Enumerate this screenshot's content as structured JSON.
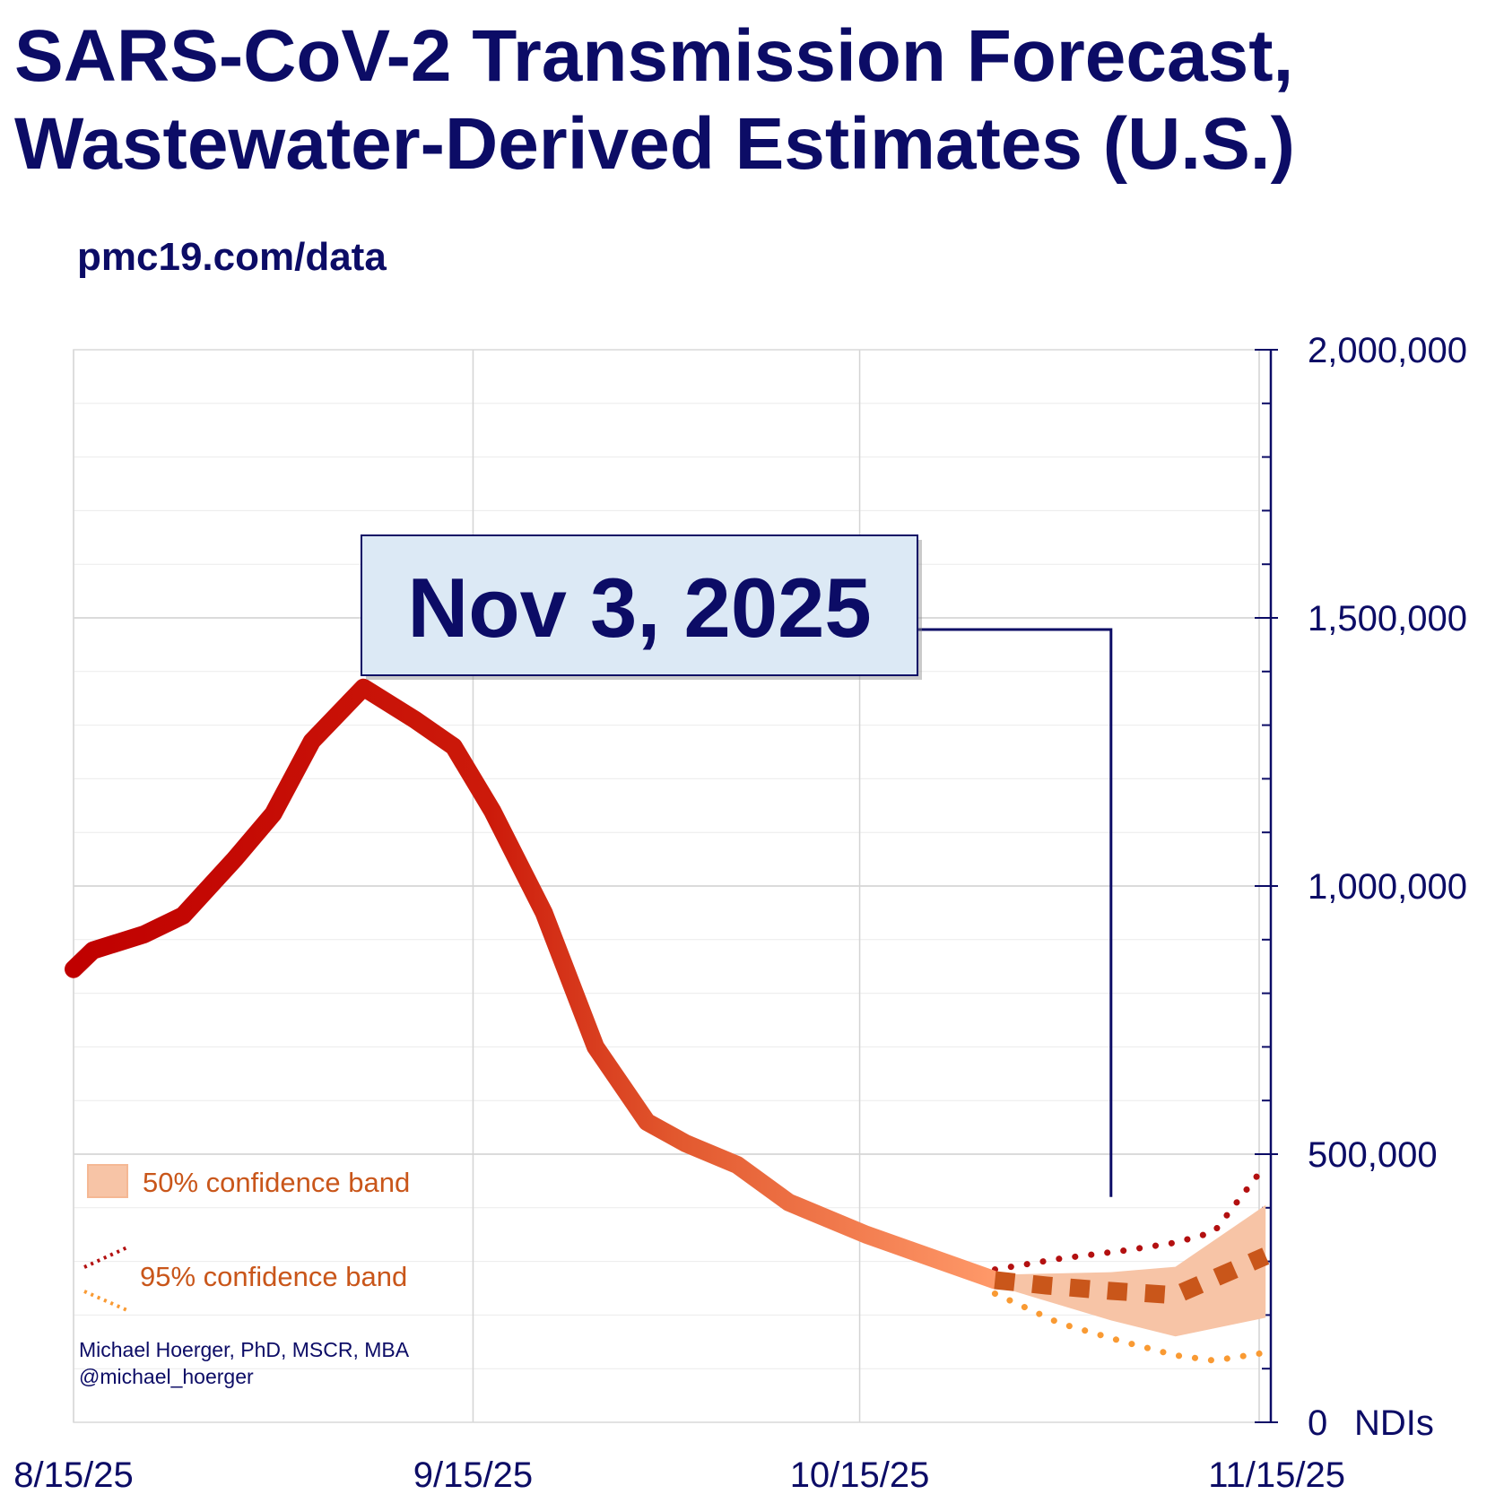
{
  "title_line1": "SARS-CoV-2 Transmission Forecast,",
  "title_line2": "Wastewater-Derived Estimates (U.S.)",
  "subtitle": "pmc19.com/data",
  "credit_name": "Michael Hoerger, PhD, MSCR, MBA",
  "credit_handle": "@michael_hoerger",
  "colors": {
    "title": "#0c0c66",
    "legend_text": "#c9561a",
    "band50": "#f7c4a6",
    "upper95": "#b31010",
    "lower95": "#f99a33",
    "forecast": "#c9561a"
  },
  "chart_data": {
    "type": "line",
    "xlabel": "",
    "ylabel": "NDIs",
    "x_ticks": [
      "8/15/25",
      "9/15/25",
      "10/15/25",
      "11/15/25"
    ],
    "x_tick_days": [
      0,
      31,
      61,
      92
    ],
    "xlim_days": [
      0,
      92
    ],
    "ylim": [
      0,
      2000000
    ],
    "y_ticks": [
      0,
      500000,
      1000000,
      1500000,
      2000000
    ],
    "y_tick_labels": [
      "0",
      "500,000",
      "1,000,000",
      "1,500,000",
      "2,000,000"
    ],
    "y_unit_label": "NDIs",
    "grid": true,
    "annotation": {
      "text": "Nov 3, 2025",
      "day": 80.5,
      "value": 420000
    },
    "legend": [
      "50% confidence band",
      "95% confidence band"
    ],
    "series": [
      {
        "name": "Observed estimates",
        "style": "solid-gradient",
        "points": [
          [
            0,
            845000
          ],
          [
            1.5,
            880000
          ],
          [
            5.5,
            910000
          ],
          [
            8.5,
            945000
          ],
          [
            12.5,
            1050000
          ],
          [
            15.5,
            1135000
          ],
          [
            18.5,
            1270000
          ],
          [
            22.5,
            1370000
          ],
          [
            26.5,
            1310000
          ],
          [
            29.5,
            1260000
          ],
          [
            32.5,
            1140000
          ],
          [
            36.5,
            950000
          ],
          [
            40.5,
            700000
          ],
          [
            44.5,
            560000
          ],
          [
            47.5,
            520000
          ],
          [
            51.5,
            480000
          ],
          [
            55.5,
            410000
          ],
          [
            61.5,
            350000
          ],
          [
            71.5,
            265000
          ]
        ]
      },
      {
        "name": "Forecast median",
        "style": "dashed",
        "points": [
          [
            71.5,
            265000
          ],
          [
            75.5,
            255000
          ],
          [
            80.5,
            245000
          ],
          [
            85.5,
            237000
          ],
          [
            92.5,
            310000
          ]
        ]
      },
      {
        "name": "95% upper bound",
        "style": "dotted",
        "points": [
          [
            71.5,
            285000
          ],
          [
            76.5,
            305000
          ],
          [
            81.5,
            320000
          ],
          [
            85.5,
            335000
          ],
          [
            88.5,
            355000
          ],
          [
            92.5,
            480000
          ]
        ]
      },
      {
        "name": "95% lower bound",
        "style": "dotted",
        "points": [
          [
            71.5,
            240000
          ],
          [
            76.5,
            185000
          ],
          [
            81.5,
            150000
          ],
          [
            85.5,
            125000
          ],
          [
            88.5,
            115000
          ],
          [
            92.5,
            130000
          ]
        ]
      }
    ],
    "band_50": {
      "name": "50% confidence band",
      "upper": [
        [
          71.5,
          275000
        ],
        [
          80.5,
          280000
        ],
        [
          85.5,
          290000
        ],
        [
          92.5,
          405000
        ]
      ],
      "lower": [
        [
          71.5,
          255000
        ],
        [
          80.5,
          190000
        ],
        [
          85.5,
          160000
        ],
        [
          92.5,
          195000
        ]
      ]
    }
  }
}
